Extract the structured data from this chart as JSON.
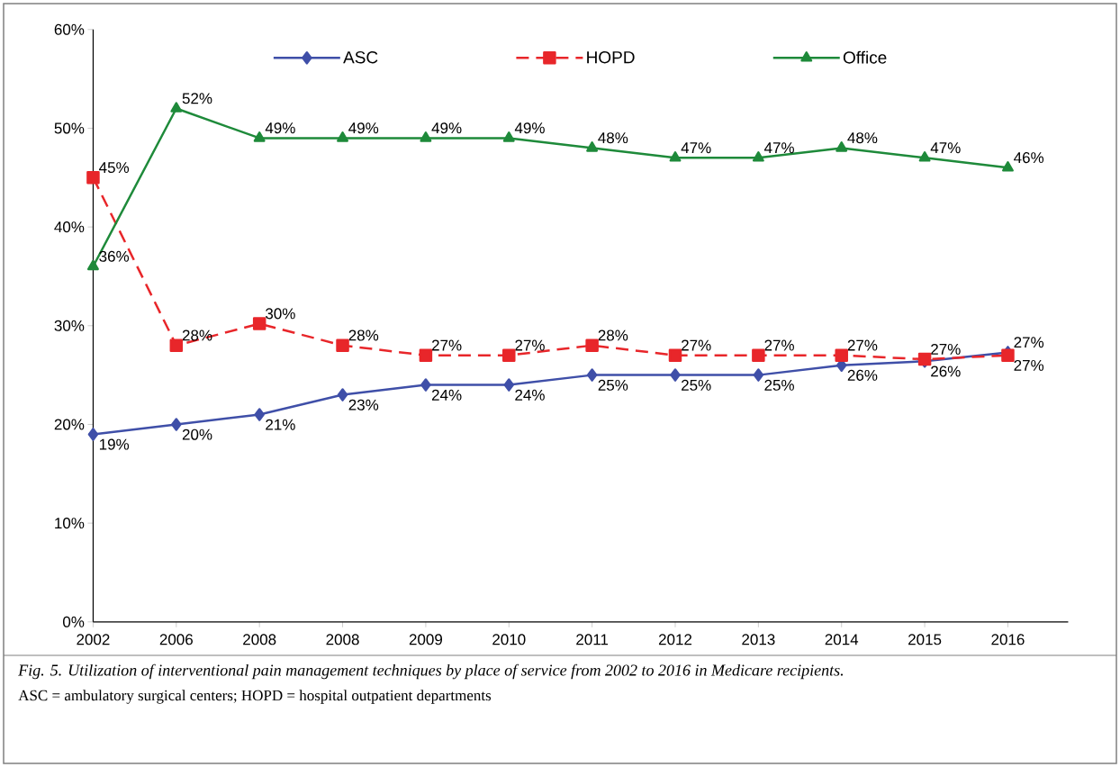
{
  "chart_data": {
    "type": "line",
    "title": "Fig. 5. Utilization of interventional pain management techniques by place of service from 2002 to 2016 in Medicare recipients.",
    "annotations": [
      "ASC = ambulatory surgical centers; HOPD = hospital outpatient departments"
    ],
    "categories": [
      "2002",
      "2006",
      "2008",
      "2008",
      "2009",
      "2010",
      "2011",
      "2012",
      "2013",
      "2014",
      "2015",
      "2016"
    ],
    "series": [
      {
        "name": "ASC",
        "color": "#3f4fa8",
        "marker": "diamond",
        "line_style": "solid",
        "values": [
          19,
          20,
          21,
          23,
          24,
          24,
          25,
          25,
          25,
          26,
          26.4,
          27.3
        ],
        "value_labels": [
          "19%",
          "20%",
          "21%",
          "23%",
          "24%",
          "24%",
          "25%",
          "25%",
          "25%",
          "26%",
          "26%",
          "27%"
        ]
      },
      {
        "name": "HOPD",
        "color": "#e8262a",
        "marker": "square",
        "line_style": "dashed",
        "values": [
          45,
          28,
          30.2,
          28,
          27,
          27,
          28,
          27,
          27,
          27,
          26.6,
          27
        ],
        "value_labels": [
          "45%",
          "28%",
          "30%",
          "28%",
          "27%",
          "27%",
          "28%",
          "27%",
          "27%",
          "27%",
          "27%",
          "27%"
        ]
      },
      {
        "name": "Office",
        "color": "#1e8a3a",
        "marker": "triangle",
        "line_style": "solid",
        "values": [
          36,
          52,
          49,
          49,
          49,
          49,
          48,
          47,
          47,
          48,
          47,
          46
        ],
        "value_labels": [
          "36%",
          "52%",
          "49%",
          "49%",
          "49%",
          "49%",
          "48%",
          "47%",
          "47%",
          "48%",
          "47%",
          "46%"
        ]
      }
    ],
    "ylim": [
      0,
      60
    ],
    "yticks": [
      {
        "value": 0,
        "label": "0%"
      },
      {
        "value": 10,
        "label": "10%"
      },
      {
        "value": 20,
        "label": "20%"
      },
      {
        "value": 30,
        "label": "30%"
      },
      {
        "value": 40,
        "label": "40%"
      },
      {
        "value": 50,
        "label": "50%"
      },
      {
        "value": 60,
        "label": "60%"
      }
    ],
    "grid": false,
    "legend": "top"
  }
}
